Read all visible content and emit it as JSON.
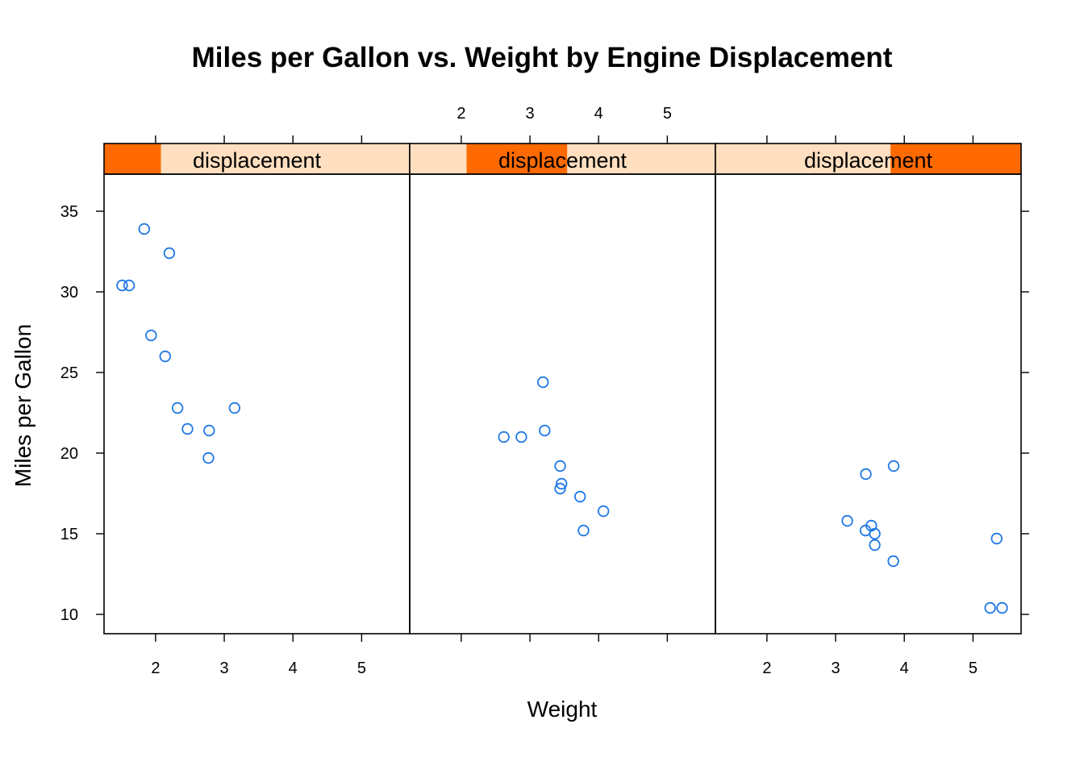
{
  "chart_data": {
    "type": "scatter",
    "layout": "trellis-panels",
    "title": "Miles per Gallon vs. Weight by Engine Displacement",
    "xlabel": "Weight",
    "ylabel": "Miles per Gallon",
    "xlim": [
      1.25,
      5.7
    ],
    "ylim": [
      8.8,
      37.3
    ],
    "x_ticks": [
      2,
      3,
      4,
      5
    ],
    "y_ticks": [
      10,
      15,
      20,
      25,
      30,
      35
    ],
    "grid": false,
    "colors": {
      "points": "#1f78e6",
      "strip_background": "#ffdfc0",
      "strip_shingle": "#ff6a00",
      "frame": "#000000"
    },
    "panels": [
      {
        "strip_label": "displacement",
        "shingle_range": [
          0.0,
          0.186
        ],
        "points": [
          {
            "x": 1.513,
            "y": 30.4
          },
          {
            "x": 1.615,
            "y": 30.4
          },
          {
            "x": 1.835,
            "y": 33.9
          },
          {
            "x": 1.935,
            "y": 27.3
          },
          {
            "x": 2.14,
            "y": 26.0
          },
          {
            "x": 2.2,
            "y": 32.4
          },
          {
            "x": 2.32,
            "y": 22.8
          },
          {
            "x": 2.465,
            "y": 21.5
          },
          {
            "x": 2.78,
            "y": 21.4
          },
          {
            "x": 2.77,
            "y": 19.7
          },
          {
            "x": 3.15,
            "y": 22.8
          }
        ]
      },
      {
        "strip_label": "displacement",
        "shingle_range": [
          0.186,
          0.515
        ],
        "points": [
          {
            "x": 2.62,
            "y": 21.0
          },
          {
            "x": 2.875,
            "y": 21.0
          },
          {
            "x": 3.19,
            "y": 24.4
          },
          {
            "x": 3.215,
            "y": 21.4
          },
          {
            "x": 3.44,
            "y": 19.2
          },
          {
            "x": 3.46,
            "y": 18.1
          },
          {
            "x": 3.44,
            "y": 17.8
          },
          {
            "x": 3.73,
            "y": 17.3
          },
          {
            "x": 3.78,
            "y": 15.2
          },
          {
            "x": 4.07,
            "y": 16.4
          }
        ]
      },
      {
        "strip_label": "displacement",
        "shingle_range": [
          0.573,
          1.0
        ],
        "points": [
          {
            "x": 3.17,
            "y": 15.8
          },
          {
            "x": 3.435,
            "y": 15.2
          },
          {
            "x": 3.44,
            "y": 18.7
          },
          {
            "x": 3.52,
            "y": 15.5
          },
          {
            "x": 3.57,
            "y": 15.0
          },
          {
            "x": 3.57,
            "y": 14.3
          },
          {
            "x": 3.84,
            "y": 13.3
          },
          {
            "x": 3.845,
            "y": 19.2
          },
          {
            "x": 5.25,
            "y": 10.4
          },
          {
            "x": 5.345,
            "y": 14.7
          },
          {
            "x": 5.424,
            "y": 10.4
          }
        ]
      }
    ]
  }
}
